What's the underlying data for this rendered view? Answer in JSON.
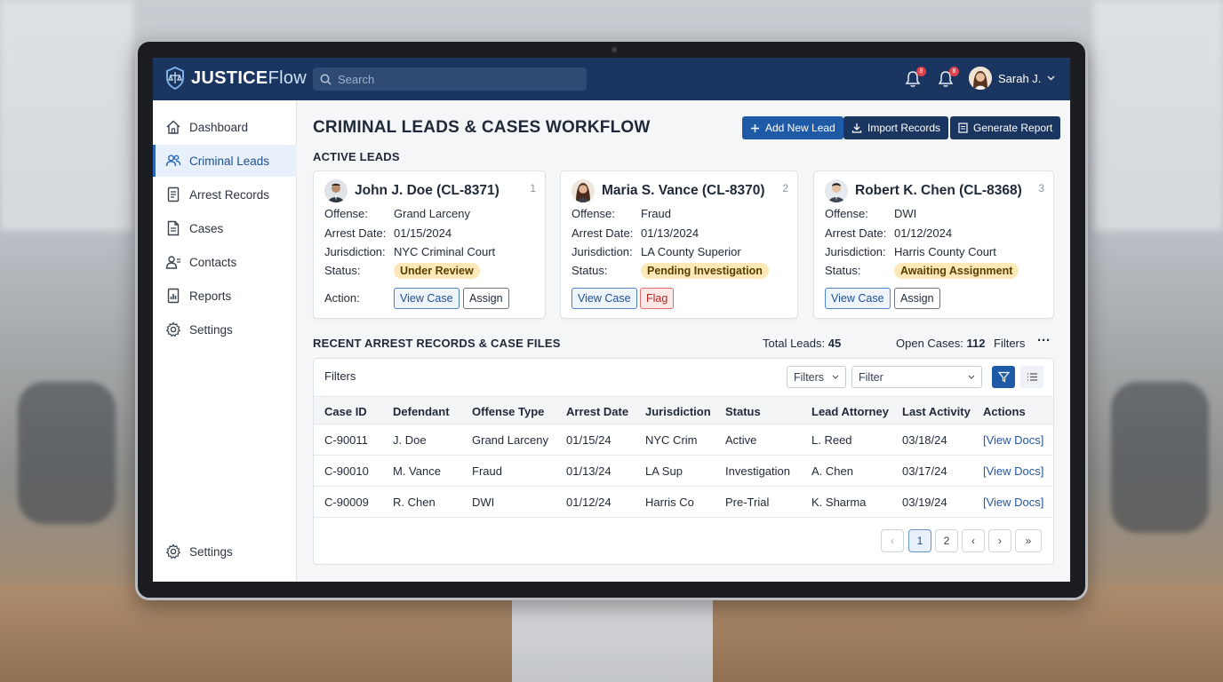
{
  "app": {
    "brand_bold": "JUSTICE",
    "brand_light": "Flow",
    "search_placeholder": "Search",
    "notifications": [
      {
        "icon": "bell-icon",
        "count": "8"
      },
      {
        "icon": "bell-icon",
        "count": "8"
      }
    ],
    "user_name": "Sarah J."
  },
  "sidebar": {
    "items": [
      {
        "label": "Dashboard",
        "icon": "home-icon"
      },
      {
        "label": "Criminal Leads",
        "icon": "users-icon",
        "active": true
      },
      {
        "label": "Arrest Records",
        "icon": "document-icon"
      },
      {
        "label": "Cases",
        "icon": "file-icon"
      },
      {
        "label": "Contacts",
        "icon": "contacts-icon"
      },
      {
        "label": "Reports",
        "icon": "report-icon"
      },
      {
        "label": "Settings",
        "icon": "gear-icon"
      }
    ],
    "footer_item": {
      "label": "Settings",
      "icon": "gear-icon"
    }
  },
  "page": {
    "title": "CRIMINAL LEADS & CASES WORKFLOW",
    "buttons": {
      "add_lead": "Add New Lead",
      "import": "Import Records",
      "report": "Generate Report"
    },
    "colors": {
      "primary": "#1e5aa6",
      "dark": "#1a3560",
      "pill": "#fde9b7",
      "flag": "#e06b6b"
    }
  },
  "active_leads": {
    "heading": "ACTIVE LEADS",
    "field_labels": {
      "offense": "Offense:",
      "arrest_date": "Arrest Date:",
      "jurisdiction": "Jurisdiction:",
      "status": "Status:",
      "action": "Action:"
    },
    "cards": [
      {
        "name": "John J. Doe (CL-8371)",
        "num": "1",
        "offense": "Grand Larceny",
        "arrest_date": "01/15/2024",
        "jurisdiction": "NYC Criminal Court",
        "status": "Under Review",
        "btn1": "View Case",
        "btn2": "Assign"
      },
      {
        "name": "Maria S. Vance (CL-8370)",
        "num": "2",
        "offense": "Fraud",
        "arrest_date": "01/13/2024",
        "jurisdiction": "LA County Superior",
        "status": "Pending Investigation",
        "btn1": "View Case",
        "btn2": "Flag"
      },
      {
        "name": "Robert K. Chen (CL-8368)",
        "num": "3",
        "offense": "DWI",
        "arrest_date": "01/12/2024",
        "jurisdiction": "Harris County Court",
        "status": "Awaiting Assignment",
        "btn1": "View Case",
        "btn2": "Assign"
      }
    ]
  },
  "records": {
    "heading": "RECENT ARREST RECORDS & CASE FILES",
    "total_leads_label": "Total Leads:",
    "total_leads": "45",
    "open_cases_label": "Open Cases:",
    "open_cases": "112",
    "filters_label": "Filters",
    "more": "···",
    "panel_filters_label": "Filters",
    "filters_select": "Filters",
    "filter_input": "Filter",
    "columns": [
      "Case ID",
      "Defendant",
      "Offense Type",
      "Arrest Date",
      "Jurisdiction",
      "Status",
      "Lead Attorney",
      "Last Activity",
      "Actions"
    ],
    "rows": [
      [
        "C-90011",
        "J. Doe",
        "Grand Larceny",
        "01/15/24",
        "NYC Crim",
        "Active",
        "L. Reed",
        "03/18/24",
        "[View Docs]"
      ],
      [
        "C-90010",
        "M. Vance",
        "Fraud",
        "01/13/24",
        "LA Sup",
        "Investigation",
        "A. Chen",
        "03/17/24",
        "[View Docs]"
      ],
      [
        "C-90009",
        "R. Chen",
        "DWI",
        "01/12/24",
        "Harris Co",
        "Pre-Trial",
        "K. Sharma",
        "03/19/24",
        "[View Docs]"
      ]
    ],
    "pagination": {
      "first": "‹",
      "pages": [
        "1",
        "2"
      ],
      "prev": "‹",
      "next": "›",
      "last": "»",
      "current": "1"
    }
  }
}
